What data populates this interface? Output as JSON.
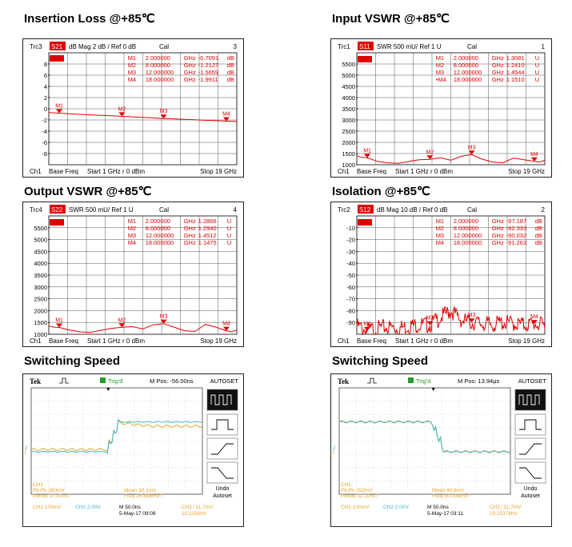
{
  "chart_data": [
    {
      "type": "line",
      "title": "Insertion Loss @+85℃",
      "header": {
        "trace": "Trc3",
        "param": "S21",
        "format": "dB Mag",
        "scale": "2 dB /",
        "ref": "Ref 0 dB",
        "cal": "Cal",
        "num": "3"
      },
      "ytick_labels": [
        "8",
        "6",
        "4",
        "2",
        "0",
        "-2",
        "-4",
        "-6",
        "-8"
      ],
      "ylim": [
        -9,
        9
      ],
      "xlim": [
        1,
        19
      ],
      "footer": {
        "ch": "Ch1",
        "base": "Base Freq",
        "start": "Start  1 GHz  r   0 dBm",
        "stop": "Stop  19 GHz"
      },
      "markers": [
        {
          "id": "M1",
          "freq": "2.000000",
          "unit_f": "GHz",
          "val": "-0.7091",
          "unit_v": "dB",
          "x": 2,
          "y": -0.71
        },
        {
          "id": "M2",
          "freq": "8.000000",
          "unit_f": "GHz",
          "val": "-1.2127",
          "unit_v": "dB",
          "x": 8,
          "y": -1.21
        },
        {
          "id": "M3",
          "freq": "12.000000",
          "unit_f": "GHz",
          "val": "-1.5659",
          "unit_v": "dB",
          "x": 12,
          "y": -1.57
        },
        {
          "id": "M4",
          "freq": "18.000000",
          "unit_f": "GHz",
          "val": "-1.9911",
          "unit_v": "dB",
          "x": 18,
          "y": -1.99
        }
      ],
      "series": [
        {
          "x": [
            1,
            2,
            3,
            4,
            5,
            6,
            7,
            8,
            9,
            10,
            11,
            12,
            13,
            14,
            15,
            16,
            17,
            18,
            19
          ],
          "values": [
            -0.6,
            -0.71,
            -0.8,
            -0.9,
            -0.98,
            -1.05,
            -1.12,
            -1.21,
            -1.3,
            -1.38,
            -1.47,
            -1.57,
            -1.62,
            -1.7,
            -1.78,
            -1.85,
            -1.92,
            -1.99,
            -2.05
          ]
        }
      ]
    },
    {
      "type": "line",
      "title": "Input VSWR @+85℃",
      "header": {
        "trace": "Trc1",
        "param": "S11",
        "format": "SWR",
        "scale": "500 mU/",
        "ref": "Ref 1 U",
        "cal": "Cal",
        "num": "1"
      },
      "ytick_labels": [
        "5500",
        "5000",
        "4500",
        "4000",
        "3500",
        "3000",
        "2500",
        "2000",
        "1500",
        "1000"
      ],
      "ylim": [
        1000,
        6000
      ],
      "xlim": [
        1,
        19
      ],
      "footer": {
        "ch": "Ch1",
        "base": "Base Freq",
        "start": "Start  1 GHz  r   0 dBm",
        "stop": "Stop  19 GHz"
      },
      "markers": [
        {
          "id": "M1",
          "freq": "2.000000",
          "unit_f": "GHz",
          "val": "1.3081",
          "unit_v": "U",
          "x": 2,
          "y": 1308
        },
        {
          "id": "M2",
          "freq": "8.000000",
          "unit_f": "GHz",
          "val": "1.2410",
          "unit_v": "U",
          "x": 8,
          "y": 1241
        },
        {
          "id": "M3",
          "freq": "12.000000",
          "unit_f": "GHz",
          "val": "1.4544",
          "unit_v": "U",
          "x": 12,
          "y": 1454
        },
        {
          "id": "•M4",
          "freq": "18.000000",
          "unit_f": "GHz",
          "val": "1.1510",
          "unit_v": "U",
          "x": 18,
          "y": 1151
        }
      ],
      "series": [
        {
          "x": [
            1,
            1.5,
            2,
            3,
            4,
            5,
            6,
            7,
            8,
            9,
            10,
            11,
            12,
            13,
            14,
            15,
            16,
            17,
            18,
            18.5,
            19
          ],
          "values": [
            1400,
            1330,
            1308,
            1150,
            1080,
            1060,
            1150,
            1220,
            1241,
            1310,
            1200,
            1380,
            1454,
            1250,
            1120,
            1090,
            1300,
            1220,
            1151,
            1120,
            1200
          ]
        }
      ]
    },
    {
      "type": "line",
      "title": "Output VSWR @+85℃",
      "header": {
        "trace": "Trc4",
        "param": "S22",
        "format": "SWR",
        "scale": "500 mU/",
        "ref": "Ref 1 U",
        "cal": "Cal",
        "num": "4"
      },
      "ytick_labels": [
        "5500",
        "5000",
        "4500",
        "4000",
        "3500",
        "3000",
        "2500",
        "2000",
        "1500",
        "1000"
      ],
      "ylim": [
        1000,
        6000
      ],
      "xlim": [
        1,
        19
      ],
      "footer": {
        "ch": "Ch1",
        "base": "Base Freq",
        "start": "Start  1 GHz  r   0 dBm",
        "stop": "Stop  19 GHz"
      },
      "markers": [
        {
          "id": "M1",
          "freq": "2.000000",
          "unit_f": "GHz",
          "val": "1.2866",
          "unit_v": "U",
          "x": 2,
          "y": 1287
        },
        {
          "id": "M2",
          "freq": "8.000000",
          "unit_f": "GHz",
          "val": "1.2940",
          "unit_v": "U",
          "x": 8,
          "y": 1294
        },
        {
          "id": "M3",
          "freq": "12.000000",
          "unit_f": "GHz",
          "val": "1.4512",
          "unit_v": "U",
          "x": 12,
          "y": 1451
        },
        {
          "id": "M4",
          "freq": "18.000000",
          "unit_f": "GHz",
          "val": "1.1475",
          "unit_v": "U",
          "x": 18,
          "y": 1148
        }
      ],
      "series": [
        {
          "x": [
            1,
            1.5,
            2,
            3,
            4,
            5,
            6,
            7,
            8,
            9,
            10,
            11,
            12,
            13,
            14,
            15,
            16,
            17,
            18,
            18.5,
            19
          ],
          "values": [
            1350,
            1300,
            1287,
            1180,
            1100,
            1080,
            1170,
            1250,
            1294,
            1320,
            1230,
            1400,
            1451,
            1300,
            1150,
            1120,
            1420,
            1300,
            1148,
            1100,
            1180
          ]
        }
      ]
    },
    {
      "type": "line",
      "title": "Isolation @+85℃",
      "header": {
        "trace": "Trc2",
        "param": "S12",
        "format": "dB Mag",
        "scale": "10 dB /",
        "ref": "Ref 0 dB",
        "cal": "Cal",
        "num": "2"
      },
      "ytick_labels": [
        "-10",
        "-20",
        "-30",
        "-40",
        "-50",
        "-60",
        "-70",
        "-80",
        "-90"
      ],
      "ylim": [
        -100,
        0
      ],
      "xlim": [
        1,
        19
      ],
      "footer": {
        "ch": "Ch1",
        "base": "Base Freq",
        "start": "Start  1 GHz  r   0 dBm",
        "stop": "Stop  19 GHz"
      },
      "markers": [
        {
          "id": "M1",
          "freq": "2.000000",
          "unit_f": "GHz",
          "val": "-97.187",
          "unit_v": "dB",
          "x": 2,
          "y": -97.2
        },
        {
          "id": "M2",
          "freq": "8.000000",
          "unit_f": "GHz",
          "val": "-92.333",
          "unit_v": "dB",
          "x": 8,
          "y": -92.3
        },
        {
          "id": "M3",
          "freq": "12.000000",
          "unit_f": "GHz",
          "val": "-90.032",
          "unit_v": "dB",
          "x": 12,
          "y": -90.0
        },
        {
          "id": "M4",
          "freq": "18.000000",
          "unit_f": "GHz",
          "val": "-91.263",
          "unit_v": "dB",
          "x": 18,
          "y": -91.3
        }
      ],
      "series": [
        {
          "x": [
            1,
            2,
            3,
            4,
            5,
            6,
            7,
            8,
            9,
            10,
            11,
            12,
            13,
            14,
            15,
            16,
            17,
            18,
            19
          ],
          "values": [
            -93,
            -97,
            -95,
            -94,
            -95,
            -93,
            -92,
            -92,
            -86,
            -80,
            -88,
            -90,
            -91,
            -92,
            -90,
            -91,
            -92,
            -91,
            -93
          ]
        }
      ]
    }
  ],
  "scopes": [
    {
      "title": "Switching Speed",
      "brand": "Tek",
      "trig": "Trig'd",
      "mpos": "M Pos: -56.00ns",
      "autoset": "AUTOSET",
      "undo": "Undo",
      "undo2": "Autoset",
      "ch1_label": "CH1",
      "readout_pk": "Pk-Pk 280mV",
      "readout_period": "Period 37.47ns?",
      "readout_mean": "Mean 30.1mV",
      "readout_freq": "Freq 26.69MHz?",
      "ch1_scale": "CH1  100mV",
      "ch2_scale": "CH2  2.00V",
      "timebase": "M 50.0ns",
      "date": "5-May-17 09:09",
      "trig_level": "CH1 ∕ 11.7mV",
      "trig_freq": "10.1156Hz",
      "edge": 0.45,
      "trace_cyan": [
        0.6,
        0.6,
        0.32,
        0.32
      ],
      "trace_orange": [
        0.58,
        0.58,
        0.33,
        0.36
      ]
    },
    {
      "title": "Switching Speed",
      "brand": "Tek",
      "trig": "Trig'd",
      "mpos": "M Pos: 13.94μs",
      "autoset": "AUTOSET",
      "undo": "Undo",
      "undo2": "Autoset",
      "ch1_label": "CH1",
      "readout_pk": "Pk-Pk 252mV",
      "readout_period": "Period 11.10ns?",
      "readout_mean": "Mean 44.6mV",
      "readout_freq": "Freq 90.09MHz?",
      "ch1_scale": "CH1  100mV",
      "ch2_scale": "CH2  2.00V",
      "timebase": "M 50.0ns",
      "date": "5-May-17 03:11",
      "trig_level": "CH1 ∕ 11.7mV",
      "trig_freq": "10.1517kHz",
      "edge": 0.55,
      "trace_cyan": [
        0.32,
        0.32,
        0.6,
        0.6
      ],
      "trace_orange": [
        0.32,
        0.32,
        0.6,
        0.6
      ]
    }
  ]
}
